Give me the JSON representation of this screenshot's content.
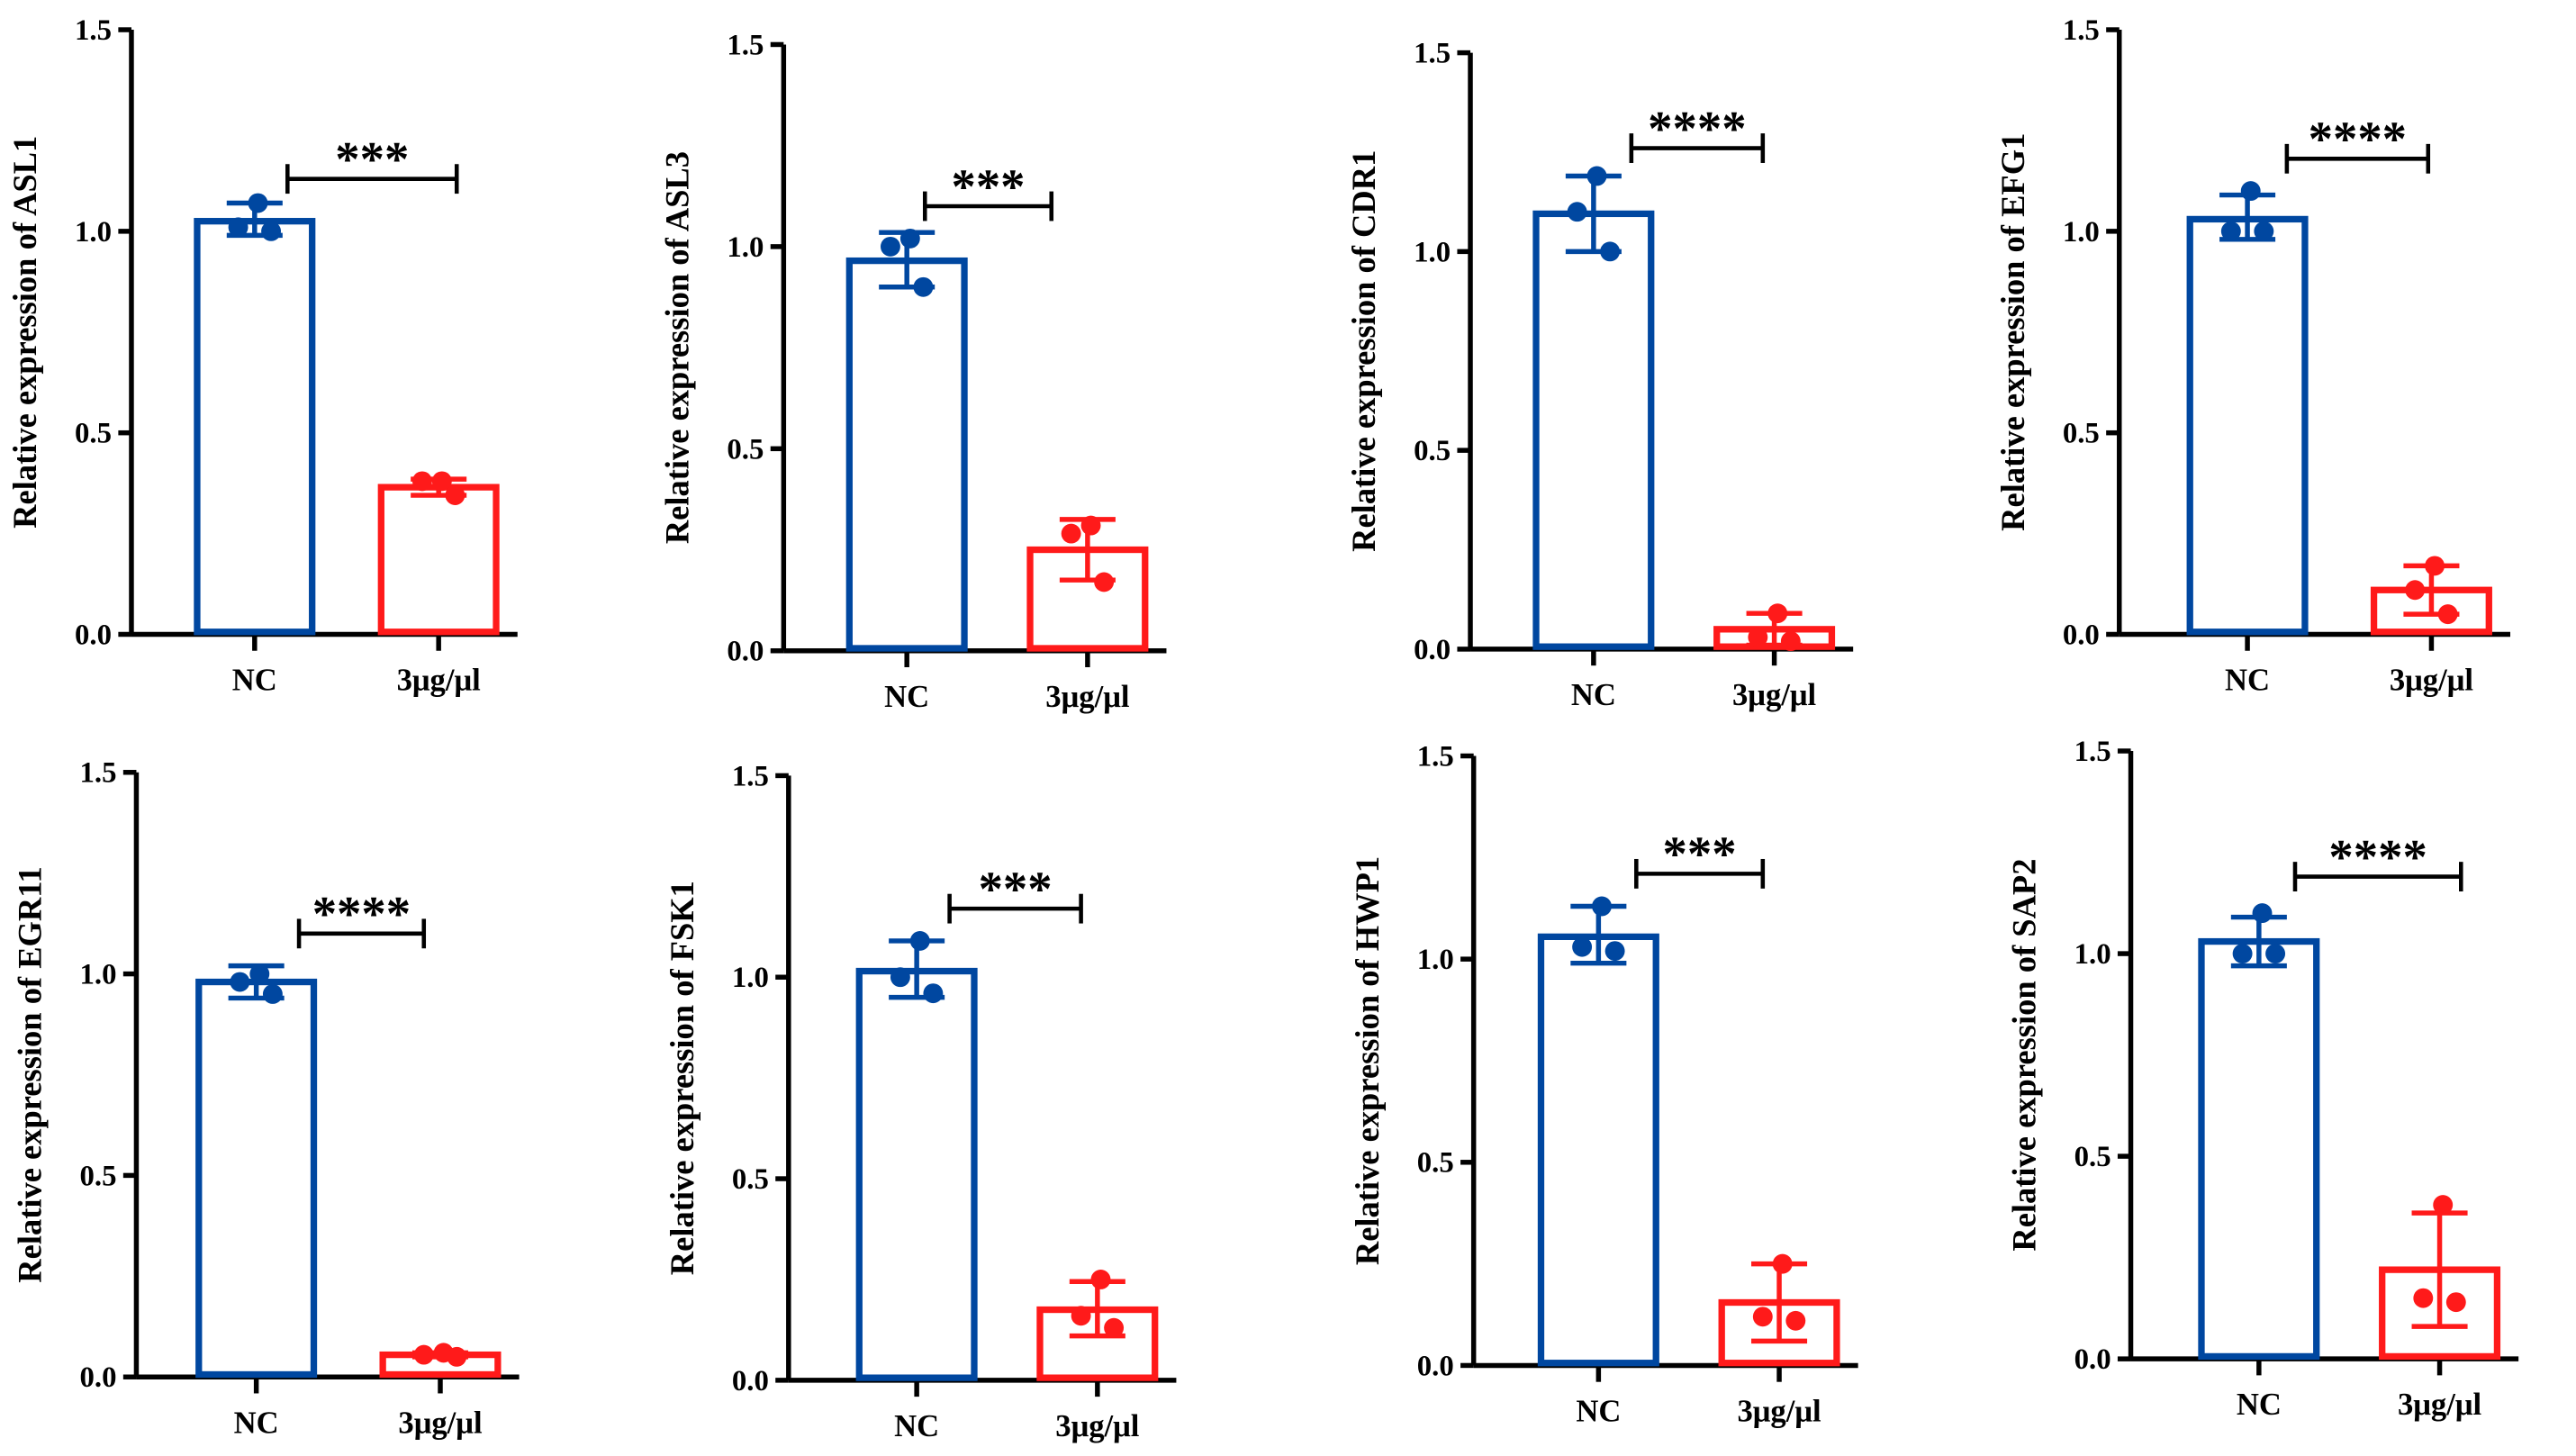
{
  "colors": {
    "nc": "#0047A0",
    "treated": "#FF1A1A",
    "axis": "#000000"
  },
  "chart_data": [
    {
      "type": "bar",
      "gene": "ASL1",
      "ylabel": "Relative expression of ASL1",
      "categories": [
        "NC",
        "3μg/μl"
      ],
      "ylim": [
        0,
        1.5
      ],
      "yticks": [
        "0.0",
        "0.5",
        "1.0",
        "1.5"
      ],
      "series": [
        {
          "name": "NC",
          "mean": 1.025,
          "err": [
            0.99,
            1.07
          ],
          "points": [
            1.07,
            1.01,
            1.0
          ]
        },
        {
          "name": "3μg/μl",
          "mean": 0.365,
          "err": [
            0.345,
            0.385
          ],
          "points": [
            0.38,
            0.38,
            0.345
          ]
        }
      ],
      "significance": "***",
      "sig_level": 1.13
    },
    {
      "type": "bar",
      "gene": "ASL3",
      "ylabel": "Relative expression of ASL3",
      "categories": [
        "NC",
        "3μg/μl"
      ],
      "ylim": [
        0,
        1.5
      ],
      "yticks": [
        "0.0",
        "0.5",
        "1.0",
        "1.5"
      ],
      "series": [
        {
          "name": "NC",
          "mean": 0.965,
          "err": [
            0.9,
            1.035
          ],
          "points": [
            1.02,
            1.0,
            0.9
          ]
        },
        {
          "name": "3μg/μl",
          "mean": 0.25,
          "err": [
            0.175,
            0.325
          ],
          "points": [
            0.31,
            0.29,
            0.17
          ]
        }
      ],
      "significance": "***",
      "sig_level": 1.1
    },
    {
      "type": "bar",
      "gene": "CDR1",
      "ylabel": "Relative expression of CDR1",
      "categories": [
        "NC",
        "3μg/μl"
      ],
      "ylim": [
        0,
        1.5
      ],
      "yticks": [
        "0.0",
        "0.5",
        "1.0",
        "1.5"
      ],
      "series": [
        {
          "name": "NC",
          "mean": 1.095,
          "err": [
            1.0,
            1.19
          ],
          "points": [
            1.19,
            1.1,
            1.0
          ]
        },
        {
          "name": "3μg/μl",
          "mean": 0.05,
          "err": [
            0.01,
            0.09
          ],
          "points": [
            0.09,
            0.03,
            0.02
          ]
        }
      ],
      "significance": "****",
      "sig_level": 1.26
    },
    {
      "type": "bar",
      "gene": "EFG1",
      "ylabel": "Relative expression of EFG1",
      "categories": [
        "NC",
        "3μg/μl"
      ],
      "ylim": [
        0,
        1.5
      ],
      "yticks": [
        "0.0",
        "0.5",
        "1.0",
        "1.5"
      ],
      "series": [
        {
          "name": "NC",
          "mean": 1.03,
          "err": [
            0.98,
            1.09
          ],
          "points": [
            1.1,
            1.0,
            1.0
          ]
        },
        {
          "name": "3μg/μl",
          "mean": 0.11,
          "err": [
            0.05,
            0.17
          ],
          "points": [
            0.17,
            0.11,
            0.05
          ]
        }
      ],
      "significance": "****",
      "sig_level": 1.18
    },
    {
      "type": "bar",
      "gene": "EGR11",
      "ylabel": "Relative expression of EGR11",
      "categories": [
        "NC",
        "3μg/μl"
      ],
      "ylim": [
        0,
        1.5
      ],
      "yticks": [
        "0.0",
        "0.5",
        "1.0",
        "1.5"
      ],
      "series": [
        {
          "name": "NC",
          "mean": 0.98,
          "err": [
            0.94,
            1.02
          ],
          "points": [
            1.0,
            0.98,
            0.95
          ]
        },
        {
          "name": "3μg/μl",
          "mean": 0.055,
          "err": [
            0.05,
            0.06
          ],
          "points": [
            0.06,
            0.055,
            0.05
          ]
        }
      ],
      "significance": "****",
      "sig_level": 1.1
    },
    {
      "type": "bar",
      "gene": "FSK1",
      "ylabel": "Relative expression of FSK1",
      "categories": [
        "NC",
        "3μg/μl"
      ],
      "ylim": [
        0,
        1.5
      ],
      "yticks": [
        "0.0",
        "0.5",
        "1.0",
        "1.5"
      ],
      "series": [
        {
          "name": "NC",
          "mean": 1.015,
          "err": [
            0.95,
            1.09
          ],
          "points": [
            1.09,
            1.0,
            0.96
          ]
        },
        {
          "name": "3μg/μl",
          "mean": 0.175,
          "err": [
            0.11,
            0.245
          ],
          "points": [
            0.25,
            0.16,
            0.13
          ]
        }
      ],
      "significance": "***",
      "sig_level": 1.17
    },
    {
      "type": "bar",
      "gene": "HWP1",
      "ylabel": "Relative expression of HWP1",
      "categories": [
        "NC",
        "3μg/μl"
      ],
      "ylim": [
        0,
        1.5
      ],
      "yticks": [
        "0.0",
        "0.5",
        "1.0",
        "1.5"
      ],
      "series": [
        {
          "name": "NC",
          "mean": 1.055,
          "err": [
            0.99,
            1.13
          ],
          "points": [
            1.13,
            1.03,
            1.02
          ]
        },
        {
          "name": "3μg/μl",
          "mean": 0.155,
          "err": [
            0.06,
            0.25
          ],
          "points": [
            0.25,
            0.12,
            0.11
          ]
        }
      ],
      "significance": "***",
      "sig_level": 1.21
    },
    {
      "type": "bar",
      "gene": "SAP2",
      "ylabel": "Relative expression of SAP2",
      "categories": [
        "NC",
        "3μg/μl"
      ],
      "ylim": [
        0,
        1.5
      ],
      "yticks": [
        "0.0",
        "0.5",
        "1.0",
        "1.5"
      ],
      "series": [
        {
          "name": "NC",
          "mean": 1.03,
          "err": [
            0.97,
            1.09
          ],
          "points": [
            1.1,
            1.0,
            1.0
          ]
        },
        {
          "name": "3μg/μl",
          "mean": 0.22,
          "err": [
            0.08,
            0.36
          ],
          "points": [
            0.38,
            0.15,
            0.14
          ]
        }
      ],
      "significance": "****",
      "sig_level": 1.19
    }
  ]
}
